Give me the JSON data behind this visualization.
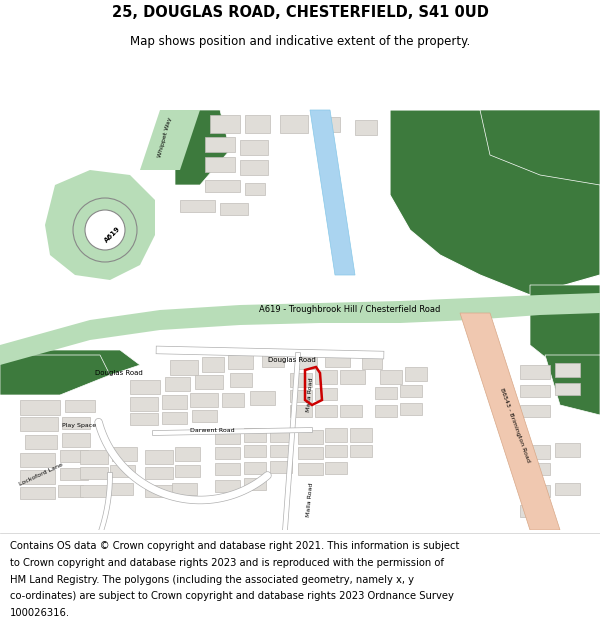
{
  "title_line1": "25, DOUGLAS ROAD, CHESTERFIELD, S41 0UD",
  "title_line2": "Map shows position and indicative extent of the property.",
  "footer_lines": [
    "Contains OS data © Crown copyright and database right 2021. This information is subject",
    "to Crown copyright and database rights 2023 and is reproduced with the permission of",
    "HM Land Registry. The polygons (including the associated geometry, namely x, y",
    "co-ordinates) are subject to Crown copyright and database rights 2023 Ordnance Survey",
    "100026316."
  ],
  "map_bg": "#ffffff",
  "road_green_light": "#b8ddb8",
  "road_green_dark": "#4a8a4a",
  "a619_band_color": "#b8ddb8",
  "road_b6543_color": "#f0c8b0",
  "building_color": "#e0ddd8",
  "building_stroke": "#c0bdb8",
  "green_area_dark": "#3d7a3d",
  "green_area_med": "#5a9a5a",
  "water_color": "#aad4f0",
  "roundabout_light": "#c8e8c8",
  "plot_color": "#cc0000",
  "text_color": "#000000",
  "footer_fontsize": 7.5,
  "title_fontsize": 11,
  "subtitle_fontsize": 9
}
